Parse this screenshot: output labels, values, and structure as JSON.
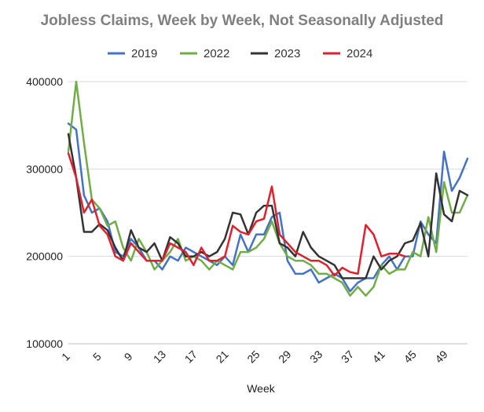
{
  "chart_data": {
    "type": "line",
    "title": "Jobless Claims, Week by Week, Not Seasonally Adjusted",
    "xlabel": "Week",
    "ylabel": "",
    "xlim": [
      1,
      52
    ],
    "ylim": [
      100000,
      400000
    ],
    "y_ticks": [
      100000,
      200000,
      300000,
      400000
    ],
    "x_ticks": [
      1,
      5,
      9,
      13,
      17,
      21,
      25,
      29,
      33,
      37,
      41,
      45,
      49
    ],
    "grid": "horizontal",
    "legend": "top",
    "series": [
      {
        "name": "2019",
        "color": "#4472C4",
        "x": [
          1,
          2,
          3,
          4,
          5,
          6,
          7,
          8,
          9,
          10,
          11,
          12,
          13,
          14,
          15,
          16,
          17,
          18,
          19,
          20,
          21,
          22,
          23,
          24,
          25,
          26,
          27,
          28,
          29,
          30,
          31,
          32,
          33,
          34,
          35,
          36,
          37,
          38,
          39,
          40,
          41,
          42,
          43,
          44,
          45,
          46,
          47,
          48,
          49,
          50,
          51,
          52
        ],
        "values": [
          352000,
          345000,
          270000,
          250000,
          255000,
          240000,
          205000,
          200000,
          220000,
          210000,
          195000,
          195000,
          185000,
          200000,
          195000,
          210000,
          205000,
          200000,
          195000,
          190000,
          200000,
          190000,
          225000,
          205000,
          225000,
          225000,
          245000,
          250000,
          195000,
          180000,
          180000,
          185000,
          170000,
          175000,
          180000,
          175000,
          160000,
          170000,
          175000,
          175000,
          190000,
          200000,
          185000,
          200000,
          200000,
          240000,
          225000,
          215000,
          320000,
          275000,
          290000,
          312000
        ]
      },
      {
        "name": "2022",
        "color": "#70AD47",
        "x": [
          1,
          2,
          3,
          4,
          5,
          6,
          7,
          8,
          9,
          10,
          11,
          12,
          13,
          14,
          15,
          16,
          17,
          18,
          19,
          20,
          21,
          22,
          23,
          24,
          25,
          26,
          27,
          28,
          29,
          30,
          31,
          32,
          33,
          34,
          35,
          36,
          37,
          38,
          39,
          40,
          41,
          42,
          43,
          44,
          45,
          46,
          47,
          48,
          49,
          50,
          51,
          52
        ],
        "values": [
          320000,
          400000,
          330000,
          265000,
          255000,
          235000,
          240000,
          210000,
          195000,
          220000,
          205000,
          185000,
          195000,
          205000,
          220000,
          195000,
          200000,
          195000,
          185000,
          195000,
          190000,
          185000,
          205000,
          205000,
          210000,
          220000,
          240000,
          215000,
          200000,
          195000,
          195000,
          190000,
          180000,
          180000,
          175000,
          170000,
          155000,
          165000,
          155000,
          165000,
          190000,
          180000,
          185000,
          185000,
          205000,
          200000,
          245000,
          205000,
          285000,
          250000,
          250000,
          270000
        ]
      },
      {
        "name": "2023",
        "color": "#333333",
        "x": [
          1,
          2,
          3,
          4,
          5,
          6,
          7,
          8,
          9,
          10,
          11,
          12,
          13,
          14,
          15,
          16,
          17,
          18,
          19,
          20,
          21,
          22,
          23,
          24,
          25,
          26,
          27,
          28,
          29,
          30,
          31,
          32,
          33,
          34,
          35,
          36,
          37,
          38,
          39,
          40,
          41,
          42,
          43,
          44,
          45,
          46,
          47,
          48,
          49,
          50,
          51,
          52
        ],
        "values": [
          340000,
          290000,
          228000,
          228000,
          237000,
          230000,
          210000,
          195000,
          230000,
          210000,
          205000,
          215000,
          195000,
          222000,
          215000,
          200000,
          200000,
          205000,
          200000,
          205000,
          220000,
          250000,
          248000,
          225000,
          250000,
          258000,
          258000,
          215000,
          210000,
          200000,
          228000,
          210000,
          200000,
          195000,
          190000,
          175000,
          175000,
          175000,
          175000,
          200000,
          185000,
          195000,
          200000,
          215000,
          218000,
          238000,
          200000,
          295000,
          248000,
          240000,
          275000,
          270000
        ]
      },
      {
        "name": "2024",
        "color": "#E0202C",
        "x": [
          1,
          2,
          3,
          4,
          5,
          6,
          7,
          8,
          9,
          10,
          11,
          12,
          13,
          14,
          15,
          16,
          17,
          18,
          19,
          20,
          21,
          22,
          23,
          24,
          25,
          26,
          27,
          28,
          29,
          30,
          31,
          32,
          33,
          34,
          35,
          36,
          37,
          38,
          39,
          40,
          41,
          42,
          43,
          44
        ],
        "values": [
          318000,
          290000,
          250000,
          265000,
          235000,
          225000,
          200000,
          195000,
          215000,
          205000,
          195000,
          195000,
          195000,
          215000,
          210000,
          205000,
          190000,
          210000,
          195000,
          195000,
          200000,
          235000,
          228000,
          225000,
          240000,
          243000,
          280000,
          225000,
          215000,
          205000,
          200000,
          195000,
          195000,
          190000,
          178000,
          187000,
          182000,
          180000,
          236000,
          225000,
          200000,
          203000,
          203000,
          200000
        ]
      }
    ]
  }
}
